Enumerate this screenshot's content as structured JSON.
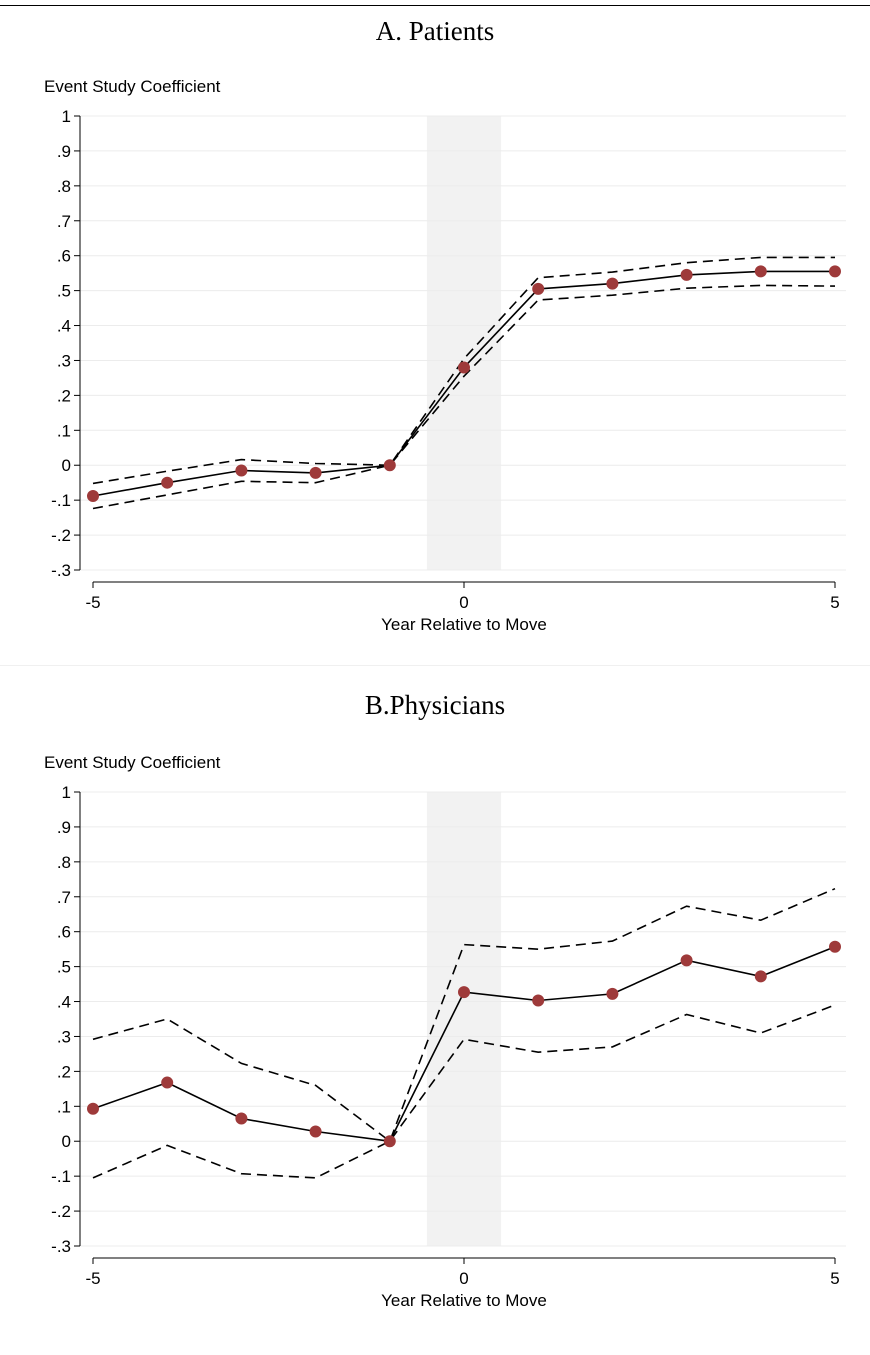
{
  "colors": {
    "marker": "#9e3a3a",
    "shade": "#f2f2f2",
    "grid": "#ececec",
    "line": "#000000"
  },
  "chart_data": [
    {
      "type": "line",
      "title": "A. Patients",
      "xlabel": "Year Relative to Move",
      "ylabel": "Event Study Coefficient",
      "xlim": [
        -5,
        5
      ],
      "ylim": [
        -0.3,
        1
      ],
      "yticks": [
        1,
        0.9,
        0.8,
        0.7,
        0.6,
        0.5,
        0.4,
        0.3,
        0.2,
        0.1,
        0,
        -0.1,
        -0.2,
        -0.3
      ],
      "ytick_labels": [
        "1",
        ".9",
        ".8",
        ".7",
        ".6",
        ".5",
        ".4",
        ".3",
        ".2",
        ".1",
        "0",
        "-.1",
        "-.2",
        "-.3"
      ],
      "xticks": [
        -5,
        0,
        5
      ],
      "xtick_labels": [
        "-5",
        "0",
        "5"
      ],
      "shaded_region": [
        -0.5,
        0.5
      ],
      "grid": true,
      "x": [
        -5,
        -4,
        -3,
        -2,
        -1,
        0,
        1,
        2,
        3,
        4,
        5
      ],
      "series": [
        {
          "values": [
            -0.088,
            -0.05,
            -0.015,
            -0.022,
            0.0,
            0.28,
            0.505,
            0.52,
            0.545,
            0.555,
            0.555
          ]
        },
        {
          "values": [
            -0.052,
            -0.017,
            0.016,
            0.005,
            0.0,
            0.305,
            0.537,
            0.553,
            0.58,
            0.595,
            0.595
          ]
        },
        {
          "values": [
            -0.124,
            -0.085,
            -0.046,
            -0.05,
            0.0,
            0.255,
            0.473,
            0.487,
            0.507,
            0.515,
            0.513
          ]
        }
      ]
    },
    {
      "type": "line",
      "title": "B.Physicians",
      "xlabel": "Year Relative to Move",
      "ylabel": "Event Study Coefficient",
      "xlim": [
        -5,
        5
      ],
      "ylim": [
        -0.3,
        1
      ],
      "yticks": [
        1,
        0.9,
        0.8,
        0.7,
        0.6,
        0.5,
        0.4,
        0.3,
        0.2,
        0.1,
        0,
        -0.1,
        -0.2,
        -0.3
      ],
      "ytick_labels": [
        "1",
        ".9",
        ".8",
        ".7",
        ".6",
        ".5",
        ".4",
        ".3",
        ".2",
        ".1",
        "0",
        "-.1",
        "-.2",
        "-.3"
      ],
      "xticks": [
        -5,
        0,
        5
      ],
      "xtick_labels": [
        "-5",
        "0",
        "5"
      ],
      "shaded_region": [
        -0.5,
        0.5
      ],
      "grid": true,
      "x": [
        -5,
        -4,
        -3,
        -2,
        -1,
        0,
        1,
        2,
        3,
        4,
        5
      ],
      "series": [
        {
          "values": [
            0.093,
            0.168,
            0.065,
            0.028,
            0.0,
            0.427,
            0.403,
            0.422,
            0.518,
            0.472,
            0.557
          ]
        },
        {
          "values": [
            0.292,
            0.35,
            0.223,
            0.16,
            0.0,
            0.563,
            0.55,
            0.573,
            0.673,
            0.633,
            0.723
          ]
        },
        {
          "values": [
            -0.105,
            -0.012,
            -0.093,
            -0.105,
            0.0,
            0.292,
            0.255,
            0.27,
            0.363,
            0.31,
            0.39
          ]
        }
      ]
    }
  ]
}
